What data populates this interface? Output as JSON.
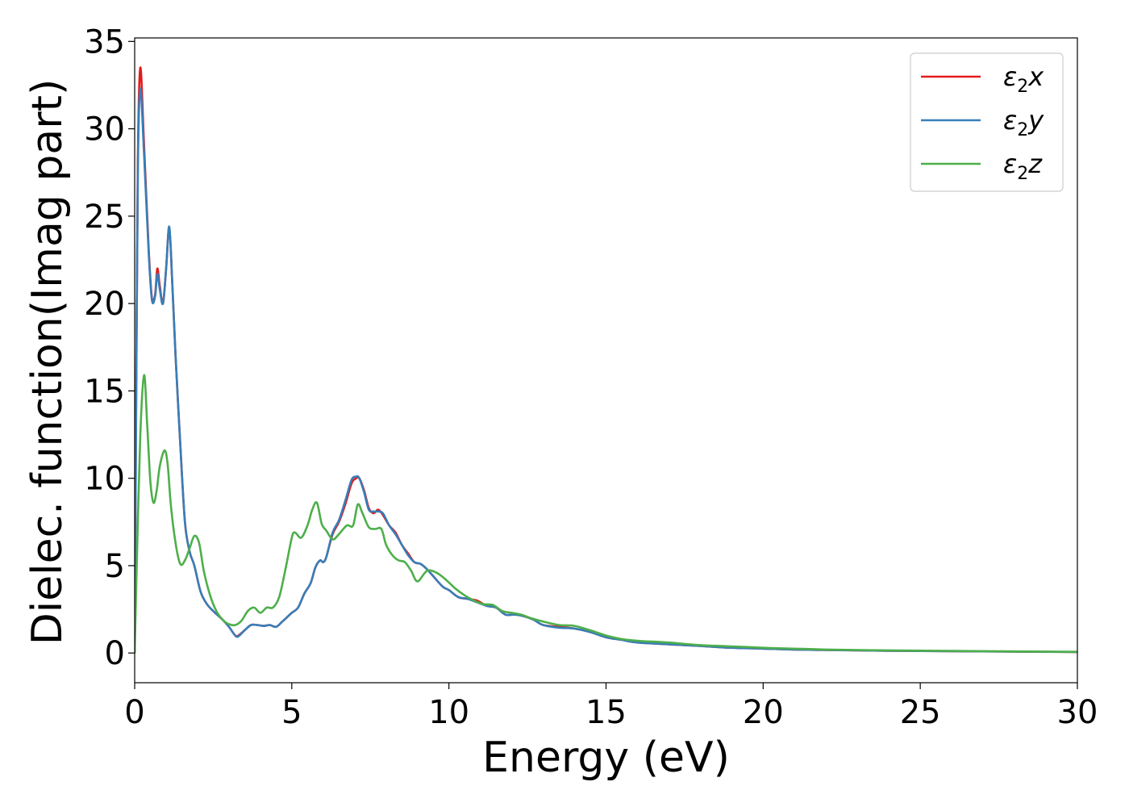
{
  "chart_data": {
    "type": "line",
    "title": "",
    "xlabel": "Energy (eV)",
    "ylabel": "Dielec. function(Imag part)",
    "xlim": [
      0,
      30
    ],
    "ylim": [
      -1.7,
      35.2
    ],
    "xticks": [
      0,
      5,
      10,
      15,
      20,
      25,
      30
    ],
    "yticks": [
      0,
      5,
      10,
      15,
      20,
      25,
      30,
      35
    ],
    "grid": false,
    "legend_position": "top-right",
    "series": [
      {
        "name": "ε₂x",
        "legend_base": "ε",
        "legend_sub": "2",
        "legend_suffix": "x",
        "color": "#e41a1c",
        "x": [
          0,
          0.05,
          0.1,
          0.18,
          0.3,
          0.45,
          0.55,
          0.65,
          0.72,
          0.8,
          0.9,
          1.0,
          1.1,
          1.2,
          1.3,
          1.45,
          1.6,
          1.75,
          1.9,
          2.1,
          2.3,
          2.5,
          2.8,
          3.0,
          3.2,
          3.3,
          3.5,
          3.7,
          3.9,
          4.1,
          4.3,
          4.5,
          4.7,
          5.0,
          5.2,
          5.4,
          5.6,
          5.75,
          5.9,
          6.0,
          6.1,
          6.3,
          6.5,
          6.7,
          6.9,
          7.05,
          7.15,
          7.3,
          7.45,
          7.6,
          7.75,
          7.9,
          8.1,
          8.3,
          8.5,
          8.7,
          8.9,
          9.1,
          9.3,
          9.5,
          9.8,
          10.0,
          10.3,
          10.6,
          10.9,
          11.2,
          11.5,
          11.8,
          12.1,
          12.4,
          12.7,
          13.0,
          13.5,
          14.0,
          14.5,
          15.0,
          15.5,
          16.0,
          17.0,
          18.0,
          19.0,
          20.0,
          21.0,
          22.0,
          24.0,
          26.0,
          28.0,
          30.0
        ],
        "y": [
          0,
          15,
          28,
          33.5,
          29,
          23,
          20.3,
          20.5,
          22,
          21,
          20,
          22,
          24.3,
          21,
          17,
          12,
          7.5,
          5.8,
          5.0,
          3.5,
          2.8,
          2.4,
          1.9,
          1.5,
          1.0,
          1.0,
          1.3,
          1.6,
          1.6,
          1.55,
          1.6,
          1.5,
          1.8,
          2.3,
          2.6,
          3.4,
          4.0,
          4.9,
          5.3,
          5.2,
          5.5,
          6.8,
          7.5,
          8.5,
          9.7,
          10.0,
          10.0,
          9.3,
          8.3,
          8.0,
          8.2,
          7.9,
          7.3,
          6.9,
          6.2,
          5.7,
          5.2,
          5.1,
          4.8,
          4.4,
          3.8,
          3.6,
          3.2,
          3.1,
          3.0,
          2.7,
          2.6,
          2.2,
          2.2,
          2.1,
          1.9,
          1.6,
          1.5,
          1.4,
          1.2,
          0.9,
          0.75,
          0.6,
          0.5,
          0.4,
          0.3,
          0.25,
          0.2,
          0.17,
          0.13,
          0.1,
          0.08,
          0.06
        ]
      },
      {
        "name": "ε₂y",
        "legend_base": "ε",
        "legend_sub": "2",
        "legend_suffix": "y",
        "color": "#377eb8",
        "x": [
          0,
          0.05,
          0.1,
          0.18,
          0.3,
          0.45,
          0.55,
          0.65,
          0.72,
          0.8,
          0.9,
          1.0,
          1.1,
          1.2,
          1.3,
          1.45,
          1.6,
          1.75,
          1.9,
          2.1,
          2.3,
          2.5,
          2.8,
          3.0,
          3.2,
          3.3,
          3.5,
          3.7,
          3.9,
          4.1,
          4.3,
          4.5,
          4.7,
          5.0,
          5.2,
          5.4,
          5.6,
          5.75,
          5.9,
          6.0,
          6.1,
          6.3,
          6.5,
          6.7,
          6.9,
          7.05,
          7.15,
          7.3,
          7.45,
          7.6,
          7.75,
          7.9,
          8.1,
          8.3,
          8.5,
          8.7,
          8.9,
          9.1,
          9.3,
          9.5,
          9.8,
          10.0,
          10.3,
          10.6,
          10.9,
          11.2,
          11.5,
          11.8,
          12.1,
          12.4,
          12.7,
          13.0,
          13.5,
          14.0,
          14.5,
          15.0,
          15.5,
          16.0,
          17.0,
          18.0,
          19.0,
          20.0,
          21.0,
          22.0,
          24.0,
          26.0,
          28.0,
          30.0
        ],
        "y": [
          0,
          14.5,
          27.5,
          32.3,
          28.5,
          22.8,
          20.2,
          20.4,
          21.7,
          20.8,
          20.0,
          22,
          24.4,
          21,
          17,
          12,
          7.5,
          5.8,
          5.0,
          3.5,
          2.8,
          2.4,
          1.9,
          1.5,
          1.0,
          0.95,
          1.3,
          1.6,
          1.6,
          1.55,
          1.6,
          1.5,
          1.8,
          2.3,
          2.6,
          3.4,
          4.0,
          4.9,
          5.3,
          5.2,
          5.5,
          6.9,
          7.6,
          8.7,
          9.9,
          10.1,
          10.0,
          9.2,
          8.2,
          8.1,
          8.1,
          8.0,
          7.3,
          6.8,
          6.2,
          5.6,
          5.2,
          5.1,
          4.8,
          4.4,
          3.8,
          3.6,
          3.2,
          3.1,
          2.9,
          2.7,
          2.6,
          2.2,
          2.2,
          2.1,
          1.9,
          1.6,
          1.45,
          1.4,
          1.2,
          0.9,
          0.75,
          0.6,
          0.5,
          0.4,
          0.3,
          0.25,
          0.2,
          0.17,
          0.13,
          0.1,
          0.08,
          0.06
        ]
      },
      {
        "name": "ε₂z",
        "legend_base": "ε",
        "legend_sub": "2",
        "legend_suffix": "z",
        "color": "#4daf4a",
        "x": [
          0,
          0.08,
          0.18,
          0.3,
          0.4,
          0.5,
          0.6,
          0.7,
          0.8,
          0.95,
          1.05,
          1.15,
          1.3,
          1.45,
          1.6,
          1.75,
          1.9,
          2.05,
          2.2,
          2.4,
          2.6,
          2.8,
          3.0,
          3.2,
          3.4,
          3.6,
          3.8,
          4.0,
          4.2,
          4.4,
          4.6,
          4.8,
          5.0,
          5.1,
          5.3,
          5.5,
          5.65,
          5.8,
          5.95,
          6.1,
          6.3,
          6.5,
          6.75,
          6.95,
          7.1,
          7.25,
          7.45,
          7.65,
          7.85,
          8.0,
          8.2,
          8.4,
          8.6,
          8.8,
          9.0,
          9.3,
          9.6,
          9.9,
          10.2,
          10.5,
          10.8,
          11.1,
          11.4,
          11.7,
          12.0,
          12.3,
          12.6,
          13.0,
          13.5,
          14.0,
          14.5,
          15.0,
          15.5,
          16.0,
          16.5,
          17.0,
          18.0,
          19.0,
          20.0,
          21.0,
          22.0,
          24.0,
          26.0,
          28.0,
          30.0
        ],
        "y": [
          0,
          6,
          12.5,
          15.9,
          13,
          9.8,
          8.6,
          9.3,
          10.7,
          11.6,
          10.8,
          8.5,
          6.3,
          5.1,
          5.3,
          6.0,
          6.7,
          6.3,
          4.7,
          3.3,
          2.4,
          1.9,
          1.65,
          1.6,
          1.85,
          2.4,
          2.6,
          2.3,
          2.6,
          2.6,
          3.2,
          4.8,
          6.6,
          6.9,
          6.6,
          7.3,
          8.2,
          8.6,
          7.4,
          7.0,
          6.5,
          6.8,
          7.3,
          7.3,
          8.5,
          8.0,
          7.2,
          7.1,
          7.1,
          6.2,
          5.6,
          5.3,
          5.2,
          4.7,
          4.1,
          4.7,
          4.6,
          4.2,
          3.7,
          3.3,
          3.0,
          2.8,
          2.75,
          2.4,
          2.3,
          2.2,
          2.0,
          1.8,
          1.6,
          1.55,
          1.3,
          1.0,
          0.8,
          0.7,
          0.65,
          0.6,
          0.45,
          0.38,
          0.3,
          0.25,
          0.2,
          0.15,
          0.12,
          0.09,
          0.07
        ]
      }
    ]
  }
}
